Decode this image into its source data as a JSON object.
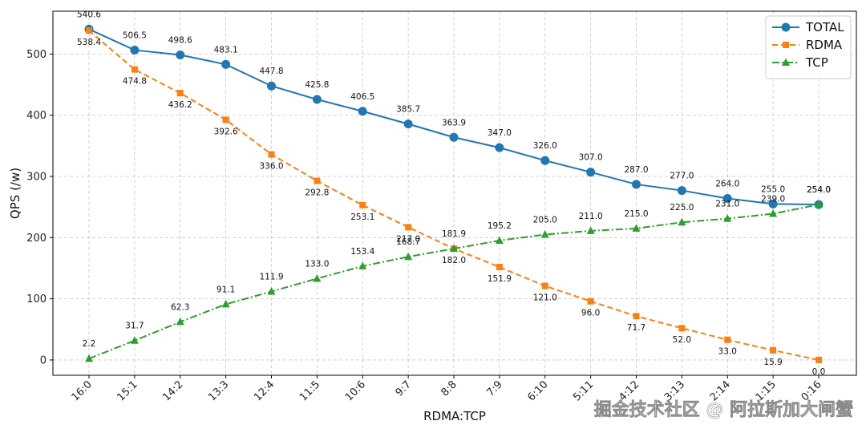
{
  "chart_data": {
    "type": "line",
    "xlabel": "RDMA:TCP",
    "ylabel": "QPS (/w)",
    "categories": [
      "16:0",
      "15:1",
      "14:2",
      "13:3",
      "12:4",
      "11:5",
      "10:6",
      "9:7",
      "8:8",
      "7:9",
      "6:10",
      "5:11",
      "4:12",
      "3:13",
      "2:14",
      "1:15",
      "0:16"
    ],
    "ylim": [
      -25,
      570
    ],
    "yticks": [
      0,
      100,
      200,
      300,
      400,
      500
    ],
    "grid": true,
    "legend_position": "top-right",
    "series": [
      {
        "name": "TOTAL",
        "color": "#1f77b4",
        "marker": "circle",
        "line_style": "solid",
        "values": [
          540.6,
          506.5,
          498.6,
          483.1,
          447.8,
          425.8,
          406.5,
          385.7,
          363.9,
          347.0,
          326.0,
          307.0,
          287.0,
          277.0,
          264.0,
          255.0,
          254.0
        ],
        "labels": [
          "540.6",
          "506.5",
          "498.6",
          "483.1",
          "447.8",
          "425.8",
          "406.5",
          "385.7",
          "363.9",
          "347.0",
          "326.0",
          "307.0",
          "287.0",
          "277.0",
          "264.0",
          "255.0",
          "254.0"
        ]
      },
      {
        "name": "RDMA",
        "color": "#ff7f0e",
        "marker": "square",
        "line_style": "dashed",
        "values": [
          538.4,
          474.8,
          436.2,
          392.6,
          336.0,
          292.8,
          253.1,
          217.0,
          182.0,
          151.9,
          121.0,
          96.0,
          71.7,
          52.0,
          33.0,
          15.9,
          0.0
        ],
        "labels": [
          "538.4",
          "474.8",
          "436.2",
          "392.6",
          "336.0",
          "292.8",
          "253.1",
          "217.0",
          "182.0",
          "151.9",
          "121.0",
          "96.0",
          "71.7",
          "52.0",
          "33.0",
          "15.9",
          "0.0"
        ]
      },
      {
        "name": "TCP",
        "color": "#2ca02c",
        "marker": "triangle",
        "line_style": "dashdot",
        "values": [
          2.2,
          31.7,
          62.3,
          91.1,
          111.9,
          133.0,
          153.4,
          168.7,
          181.9,
          195.2,
          205.0,
          211.0,
          215.0,
          225.0,
          231.0,
          239.0,
          254.0
        ],
        "labels": [
          "2.2",
          "31.7",
          "62.3",
          "91.1",
          "111.9",
          "133.0",
          "153.4",
          "168.7",
          "181.9",
          "195.2",
          "205.0",
          "211.0",
          "215.0",
          "225.0",
          "231.0",
          "239.0",
          "254.0"
        ]
      }
    ]
  },
  "watermark": "掘金技术社区 @ 阿拉斯加大闸蟹"
}
